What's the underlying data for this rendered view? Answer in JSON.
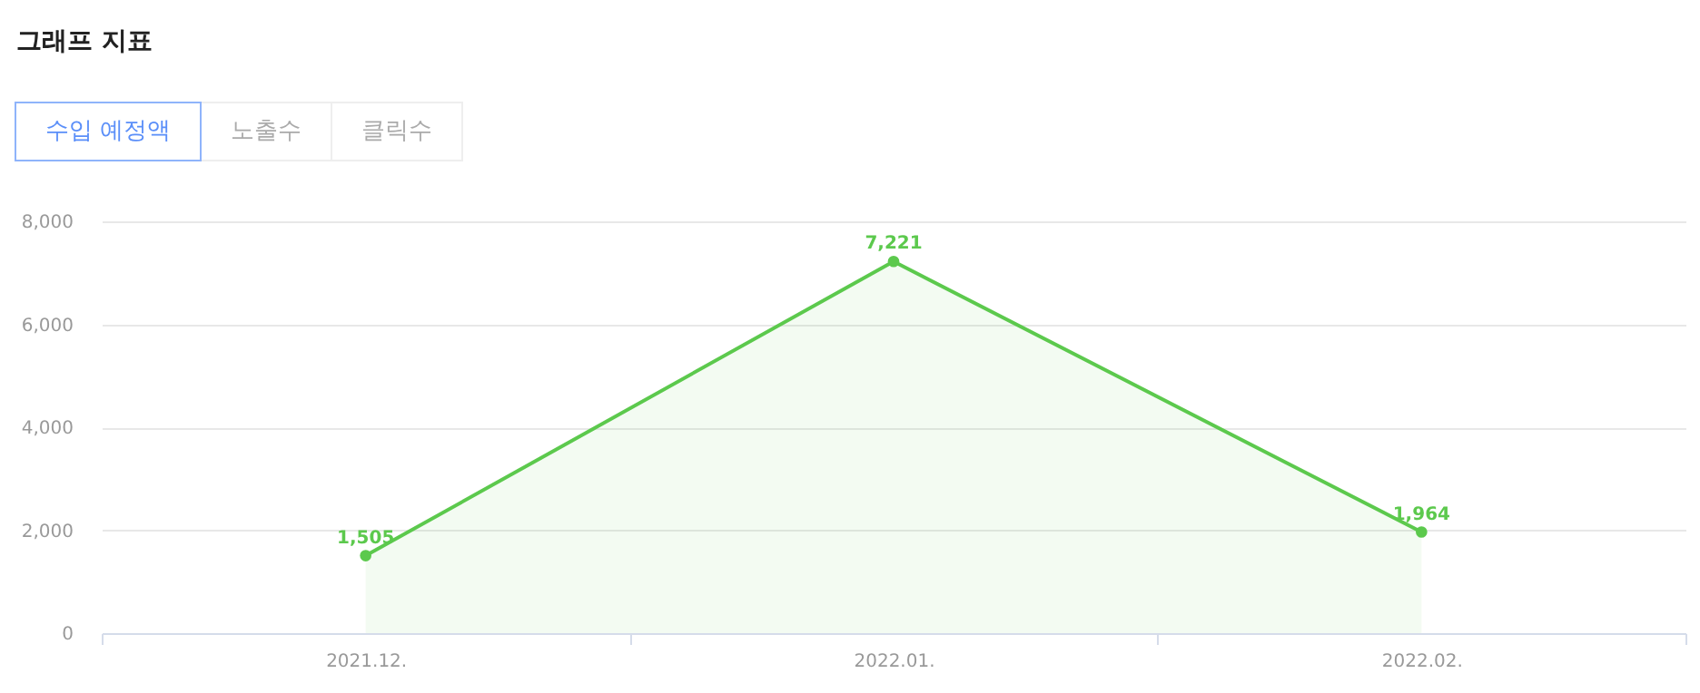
{
  "chart_data": {
    "type": "area",
    "title": "그래프 지표",
    "annotations": [
      "수입 예정액",
      "노출수",
      "클릭수"
    ],
    "categories": [
      "2021.12.",
      "2022.01.",
      "2022.02."
    ],
    "series": [
      {
        "color": "#5cc94d",
        "values": [
          1505,
          7221,
          1964
        ],
        "value_labels": [
          "1,505",
          "7,221",
          "1,964"
        ]
      }
    ],
    "ylim": [
      0,
      8000
    ],
    "yticks": [
      0,
      {
        "value": 2000,
        "label": "2,000"
      },
      {
        "value": 4000,
        "label": "4,000"
      },
      {
        "value": 6000,
        "label": "6,000"
      },
      {
        "value": 8000,
        "label": "8,000"
      }
    ],
    "grid": "y",
    "marker": "circle"
  }
}
